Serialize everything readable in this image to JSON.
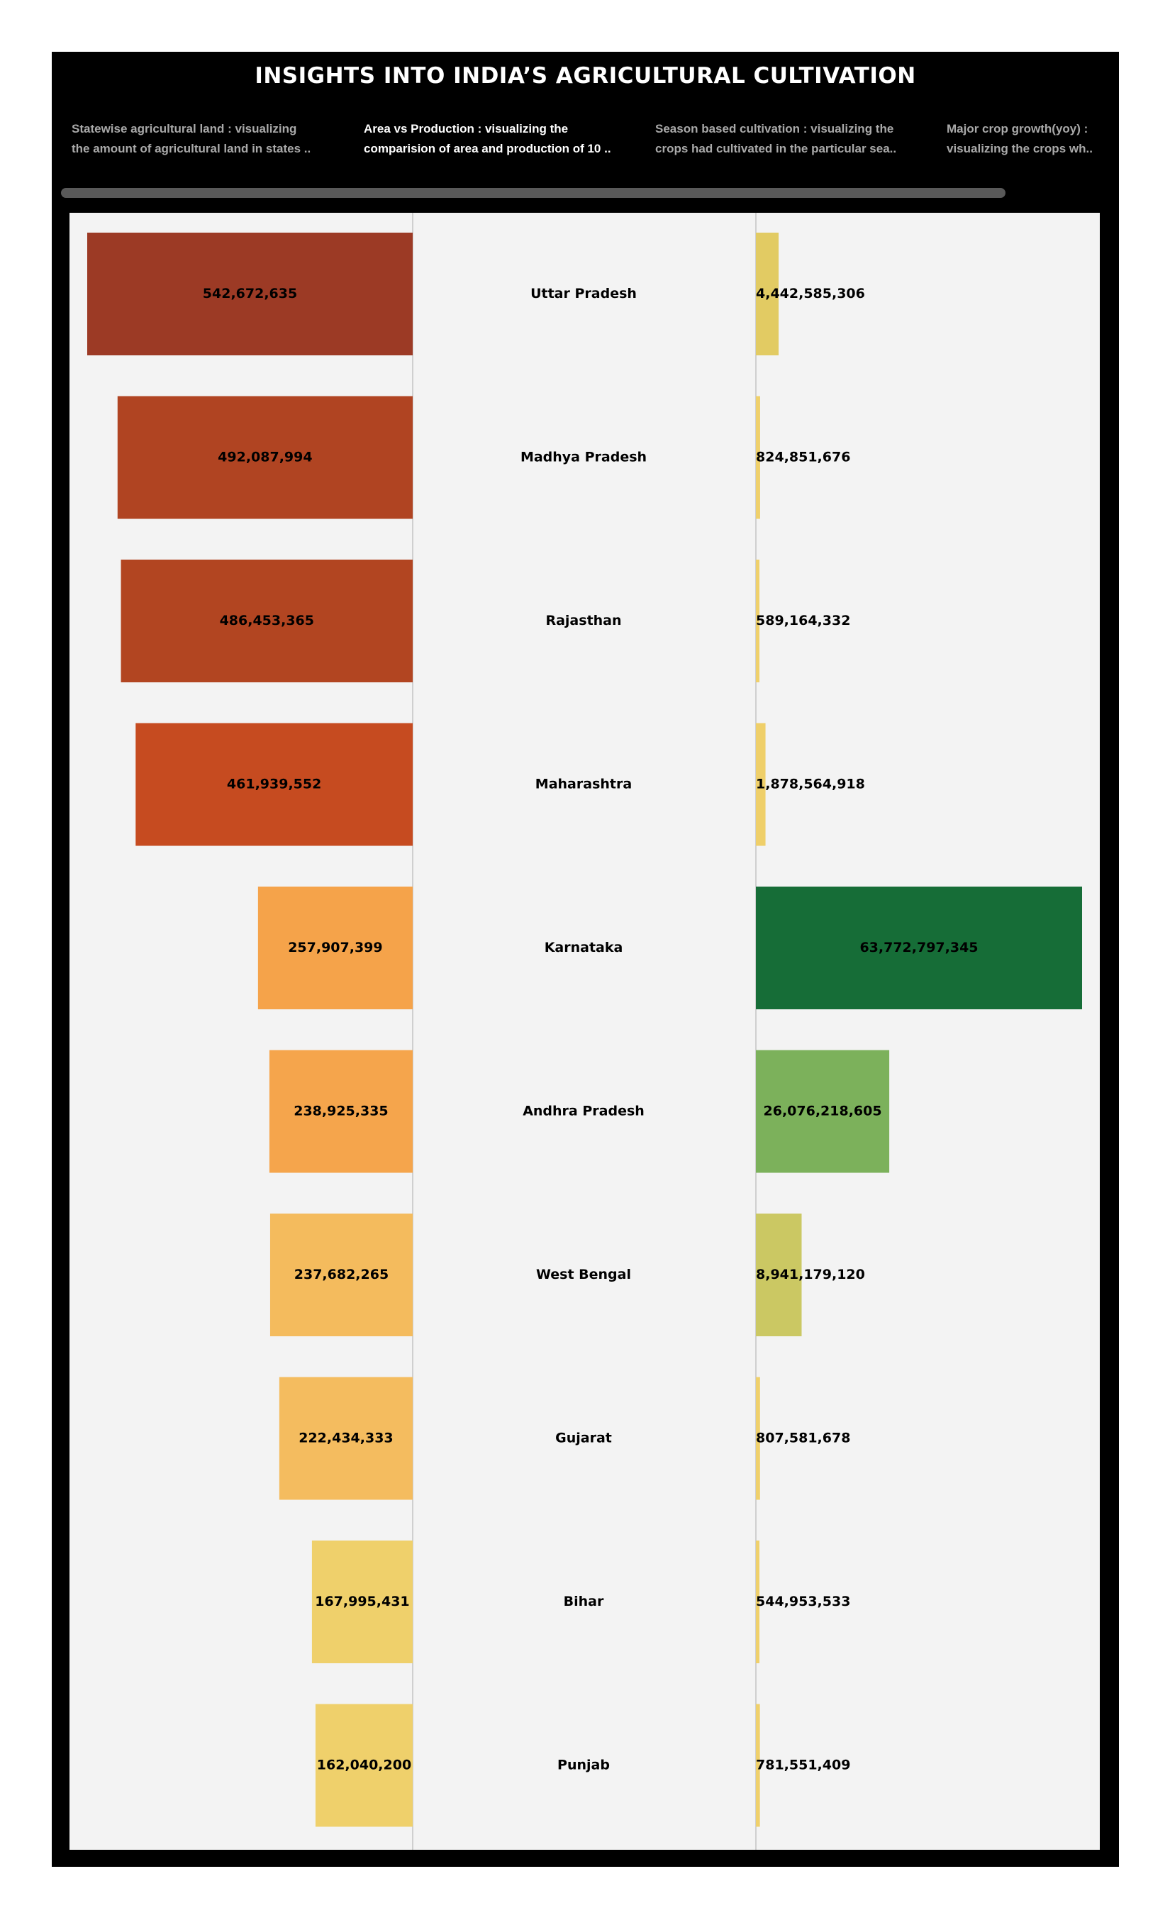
{
  "dashboard": {
    "title": "INSIGHTS INTO INDIA’S AGRICULTURAL CULTIVATION",
    "story_tabs": [
      {
        "line1": "Statewise agricultural land : visualizing",
        "line2": "the amount of agricultural land in states ..",
        "active": false
      },
      {
        "line1": "Area vs Production : visualizing the",
        "line2": "comparision of area and production of 10 ..",
        "active": true
      },
      {
        "line1": "Season based cultivation : visualizing the",
        "line2": "crops had cultivated in the particular sea..",
        "active": false
      },
      {
        "line1": "Major crop growth(yoy) :",
        "line2": "visualizing the crops wh..",
        "active": false
      }
    ]
  },
  "chart_data": {
    "type": "bar",
    "layout": "butterfly",
    "categories": [
      "Uttar Pradesh",
      "Madhya Pradesh",
      "Rajasthan",
      "Maharashtra",
      "Karnataka",
      "Andhra Pradesh",
      "West Bengal",
      "Gujarat",
      "Bihar",
      "Punjab"
    ],
    "series": [
      {
        "values": [
          542672635,
          492087994,
          486453365,
          461939552,
          257907399,
          238925335,
          237682265,
          222434333,
          167995431,
          162040200
        ],
        "labels": [
          "542,672,635",
          "492,087,994",
          "486,453,365",
          "461,939,552",
          "257,907,399",
          "238,925,335",
          "237,682,265",
          "222,434,333",
          "167,995,431",
          "162,040,200"
        ],
        "colors": [
          "#9c3a25",
          "#b04422",
          "#b24521",
          "#c64b20",
          "#f5a34a",
          "#f5a54c",
          "#f4bb5d",
          "#f4bc5f",
          "#efd06b",
          "#efd06b"
        ]
      },
      {
        "values": [
          4442585306,
          824851676,
          589164332,
          1878564918,
          63772797345,
          26076218605,
          8941179120,
          807581678,
          544953533,
          781551409
        ],
        "labels": [
          "4,442,585,306",
          "824,851,676",
          "589,164,332",
          "1,878,564,918",
          "63,772,797,345",
          "26,076,218,605",
          "8,941,179,120",
          "807,581,678",
          "544,953,533",
          "781,551,409"
        ],
        "colors": [
          "#e2cb63",
          "#efd06b",
          "#efd06b",
          "#efcf69",
          "#166d37",
          "#7cb15b",
          "#cbc863",
          "#efd06b",
          "#efd06b",
          "#efd06b"
        ]
      }
    ],
    "grid": false,
    "legend": "none"
  }
}
